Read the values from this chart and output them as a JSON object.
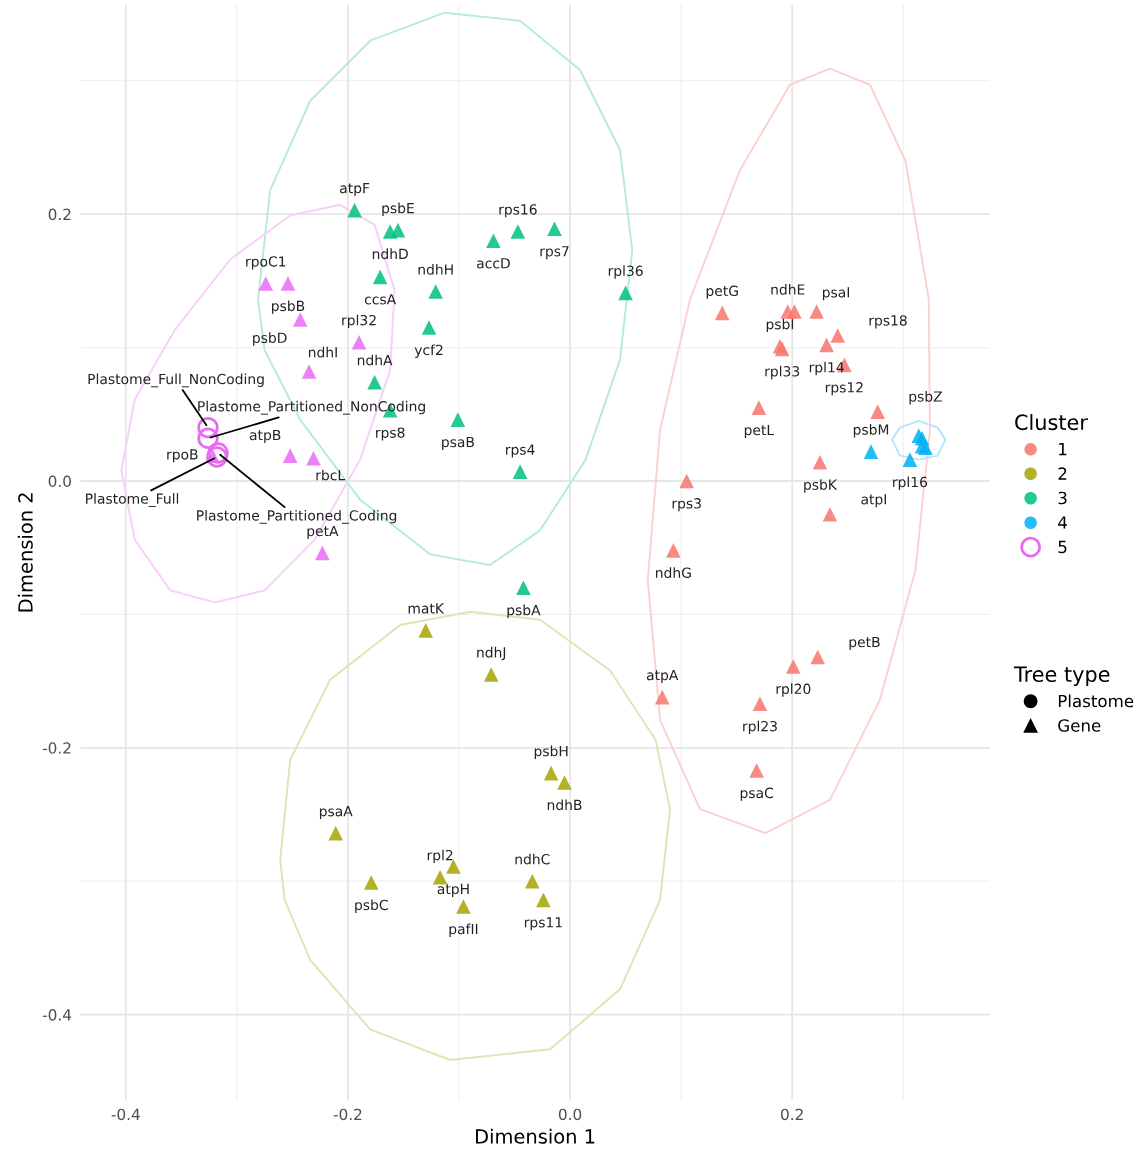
{
  "chart_data": {
    "type": "scatter",
    "xlabel": "Dimension 1",
    "ylabel": "Dimension 2",
    "xlim": [
      -0.441,
      0.378
    ],
    "ylim": [
      -0.464,
      0.357
    ],
    "xticks": [
      {
        "value": -0.4,
        "label": "-0.4"
      },
      {
        "value": -0.2,
        "label": "-0.2"
      },
      {
        "value": 0.0,
        "label": "0.0"
      },
      {
        "value": 0.2,
        "label": "0.2"
      }
    ],
    "yticks": [
      {
        "value": -0.4,
        "label": "-0.4"
      },
      {
        "value": -0.2,
        "label": "-0.2"
      },
      {
        "value": 0.0,
        "label": "0.0"
      },
      {
        "value": 0.2,
        "label": "0.2"
      }
    ],
    "grid": true,
    "legend": "right",
    "legend_title": [
      "Cluster",
      "Tree type"
    ],
    "series": [
      {
        "name": "1",
        "color": "#f8766d",
        "marker": "triangle",
        "x": [
          0.137,
          0.196,
          0.202,
          0.222,
          0.189,
          0.191,
          0.231,
          0.241,
          0.247,
          0.17,
          0.277,
          0.225,
          0.105,
          0.234,
          0.093,
          0.083,
          0.201,
          0.223,
          0.171,
          0.168
        ],
        "values": [
          0.126,
          0.127,
          0.127,
          0.127,
          0.101,
          0.099,
          0.102,
          0.109,
          0.087,
          0.055,
          0.052,
          0.014,
          0.0,
          -0.025,
          -0.052,
          -0.162,
          -0.139,
          -0.132,
          -0.167,
          -0.217
        ],
        "value_labels": [
          "petG",
          "ndhE",
          null,
          "psaI",
          "psbI",
          "rpl33",
          "rpl14",
          "rps18",
          "rps12",
          "petL",
          "psbZ",
          "psbK",
          "rps3",
          "atpI",
          "ndhG",
          "atpA",
          "rpl20",
          "petB",
          "rpl23",
          "psaC"
        ]
      },
      {
        "name": "2",
        "color": "#a3a500",
        "marker": "triangle",
        "x": [
          -0.13,
          -0.071,
          -0.017,
          -0.005,
          -0.211,
          -0.179,
          -0.117,
          -0.105,
          -0.096,
          -0.034,
          -0.024
        ],
        "values": [
          -0.112,
          -0.145,
          -0.219,
          -0.226,
          -0.264,
          -0.301,
          -0.297,
          -0.289,
          -0.319,
          -0.3,
          -0.314
        ],
        "value_labels": [
          "matK",
          "ndhJ",
          "psbH",
          "ndhB",
          "psaA",
          "psbC",
          "rpl2",
          "atpH",
          "pafII",
          "ndhC",
          "rps11"
        ]
      },
      {
        "name": "3",
        "color": "#00bf7d",
        "marker": "triangle",
        "x": [
          -0.194,
          -0.162,
          -0.155,
          -0.047,
          -0.069,
          -0.014,
          0.05,
          -0.171,
          -0.121,
          -0.127,
          -0.176,
          -0.162,
          -0.101,
          -0.045,
          -0.042
        ],
        "values": [
          0.203,
          0.187,
          0.188,
          0.187,
          0.18,
          0.189,
          0.141,
          0.153,
          0.142,
          0.115,
          0.074,
          0.053,
          0.046,
          0.007,
          -0.08
        ],
        "value_labels": [
          "atpF",
          "ndhD",
          "psbE",
          "rps16",
          "accD",
          "rps7",
          "rpl36",
          "ccsA",
          "ndhH",
          "ycf2",
          "ndhA",
          "rps8",
          "psaB",
          "rps4",
          "psbA"
        ]
      },
      {
        "name": "4",
        "color": "#00b0f6",
        "marker": "triangle",
        "x": [
          0.271,
          0.306,
          0.314,
          0.317,
          0.32,
          0.317
        ],
        "values": [
          0.022,
          0.016,
          0.034,
          0.032,
          0.025,
          0.026
        ],
        "value_labels": [
          "psbM",
          "rpl16",
          null,
          null,
          null,
          null
        ]
      },
      {
        "color": "#e76bf3",
        "marker": "triangle",
        "x": [
          -0.274,
          -0.254,
          -0.243,
          -0.19,
          -0.235,
          -0.252,
          -0.231,
          -0.223,
          -0.322
        ],
        "values": [
          0.148,
          0.148,
          0.121,
          0.104,
          0.082,
          0.019,
          0.017,
          -0.054,
          0.019
        ],
        "value_labels": [
          "rpoC1",
          "psbB",
          "psbD",
          "rpl32",
          "ndhI",
          "atpB",
          "rbcL",
          "petA",
          "rpoB"
        ]
      },
      {
        "name": "5",
        "color": "#e76bf3",
        "marker": "circle",
        "x": [
          -0.326,
          -0.326,
          -0.318,
          -0.317
        ],
        "values": [
          0.04,
          0.032,
          0.018,
          0.021
        ],
        "value_labels": [
          "Plastome_Full_NonCoding",
          "Plastome_Partitioned_NonCoding",
          "Plastome_Full",
          "Plastome_Partitioned_Coding"
        ]
      },
      {
        "name": "Plastome",
        "color": "#000000",
        "marker": "circle"
      },
      {
        "name": "Gene",
        "color": "#000000",
        "marker": "triangle"
      }
    ]
  }
}
